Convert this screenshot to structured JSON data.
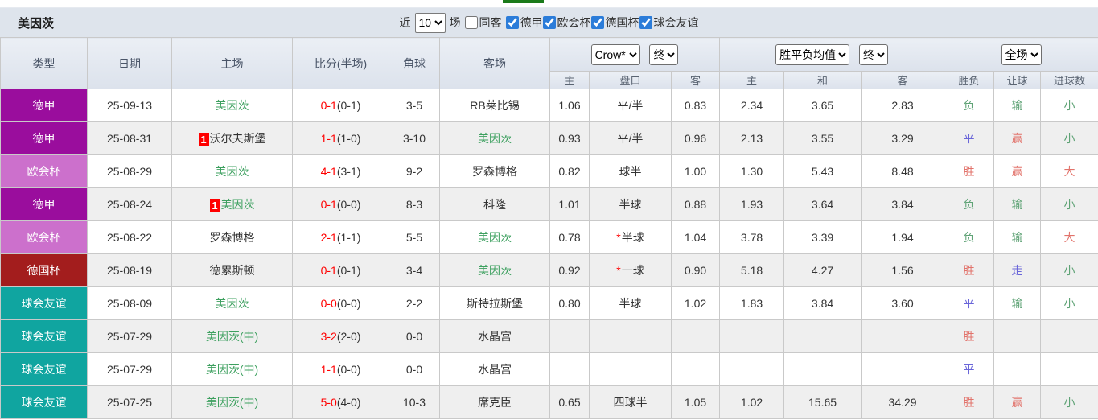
{
  "page": {
    "team_title": "美因茨"
  },
  "filter": {
    "near_label": "近",
    "matches_value": "10",
    "matches_label": "场",
    "same_away_label": "同客",
    "same_away_checked": false,
    "leagues": [
      {
        "label": "德甲",
        "checked": true
      },
      {
        "label": "欧会杯",
        "checked": true
      },
      {
        "label": "德国杯",
        "checked": true
      },
      {
        "label": "球会友谊",
        "checked": true
      }
    ]
  },
  "colors": {
    "league_bundesliga": "#9a0d9d",
    "league_uecl": "#cc70cc",
    "league_dfb_pokal": "#a31d1d",
    "league_friendly": "#10a5a0",
    "team_highlight": "#3da05f",
    "score_red": "#ff0000",
    "result_red": "#e2736b",
    "result_green": "#5fa376",
    "result_blue": "#6a66d9"
  },
  "table": {
    "headers": {
      "type": "类型",
      "date": "日期",
      "home": "主场",
      "score": "比分(半场)",
      "corner": "角球",
      "away": "客场",
      "odds_home": "主",
      "odds_handicap": "盘口",
      "odds_away": "客",
      "mean_home": "主",
      "mean_draw": "和",
      "mean_away": "客",
      "result": "胜负",
      "handicap_result": "让球",
      "goals": "进球数"
    },
    "selects": {
      "odds_source": "Crow*",
      "odds_time": "终",
      "mean_source": "胜平负均值",
      "mean_time": "终",
      "scope": "全场"
    },
    "rows": [
      {
        "type": "德甲",
        "tc": "league_bundesliga",
        "date": "25-09-13",
        "home": "美因茨",
        "homeGreen": true,
        "homeCard": "",
        "score": "0-1",
        "half": "(0-1)",
        "corner": "3-5",
        "away": "RB莱比锡",
        "awayGreen": false,
        "oh": "1.06",
        "hcStar": false,
        "hc": "平/半",
        "oa": "0.83",
        "mh": "2.34",
        "md": "3.65",
        "ma": "2.83",
        "res": "负",
        "resC": "g",
        "let": "输",
        "letC": "g",
        "goal": "小",
        "goalC": "g"
      },
      {
        "type": "德甲",
        "tc": "league_bundesliga",
        "date": "25-08-31",
        "home": "沃尔夫斯堡",
        "homeGreen": false,
        "homeCard": "1",
        "score": "1-1",
        "half": "(1-0)",
        "corner": "3-10",
        "away": "美因茨",
        "awayGreen": true,
        "oh": "0.93",
        "hcStar": false,
        "hc": "平/半",
        "oa": "0.96",
        "mh": "2.13",
        "md": "3.55",
        "ma": "3.29",
        "res": "平",
        "resC": "b",
        "let": "赢",
        "letC": "r",
        "goal": "小",
        "goalC": "g"
      },
      {
        "type": "欧会杯",
        "tc": "league_uecl",
        "date": "25-08-29",
        "home": "美因茨",
        "homeGreen": true,
        "homeCard": "",
        "score": "4-1",
        "half": "(3-1)",
        "corner": "9-2",
        "away": "罗森博格",
        "awayGreen": false,
        "oh": "0.82",
        "hcStar": false,
        "hc": "球半",
        "oa": "1.00",
        "mh": "1.30",
        "md": "5.43",
        "ma": "8.48",
        "res": "胜",
        "resC": "r",
        "let": "赢",
        "letC": "r",
        "goal": "大",
        "goalC": "r"
      },
      {
        "type": "德甲",
        "tc": "league_bundesliga",
        "date": "25-08-24",
        "home": "美因茨",
        "homeGreen": true,
        "homeCard": "1",
        "score": "0-1",
        "half": "(0-0)",
        "corner": "8-3",
        "away": "科隆",
        "awayGreen": false,
        "oh": "1.01",
        "hcStar": false,
        "hc": "半球",
        "oa": "0.88",
        "mh": "1.93",
        "md": "3.64",
        "ma": "3.84",
        "res": "负",
        "resC": "g",
        "let": "输",
        "letC": "g",
        "goal": "小",
        "goalC": "g"
      },
      {
        "type": "欧会杯",
        "tc": "league_uecl",
        "date": "25-08-22",
        "home": "罗森博格",
        "homeGreen": false,
        "homeCard": "",
        "score": "2-1",
        "half": "(1-1)",
        "corner": "5-5",
        "away": "美因茨",
        "awayGreen": true,
        "oh": "0.78",
        "hcStar": true,
        "hc": "半球",
        "oa": "1.04",
        "mh": "3.78",
        "md": "3.39",
        "ma": "1.94",
        "res": "负",
        "resC": "g",
        "let": "输",
        "letC": "g",
        "goal": "大",
        "goalC": "r"
      },
      {
        "type": "德国杯",
        "tc": "league_dfb_pokal",
        "date": "25-08-19",
        "home": "德累斯顿",
        "homeGreen": false,
        "homeCard": "",
        "score": "0-1",
        "half": "(0-1)",
        "corner": "3-4",
        "away": "美因茨",
        "awayGreen": true,
        "oh": "0.92",
        "hcStar": true,
        "hc": "一球",
        "oa": "0.90",
        "mh": "5.18",
        "md": "4.27",
        "ma": "1.56",
        "res": "胜",
        "resC": "r",
        "let": "走",
        "letC": "b",
        "goal": "小",
        "goalC": "g"
      },
      {
        "type": "球会友谊",
        "tc": "league_friendly",
        "date": "25-08-09",
        "home": "美因茨",
        "homeGreen": true,
        "homeCard": "",
        "score": "0-0",
        "half": "(0-0)",
        "corner": "2-2",
        "away": "斯特拉斯堡",
        "awayGreen": false,
        "oh": "0.80",
        "hcStar": false,
        "hc": "半球",
        "oa": "1.02",
        "mh": "1.83",
        "md": "3.84",
        "ma": "3.60",
        "res": "平",
        "resC": "b",
        "let": "输",
        "letC": "g",
        "goal": "小",
        "goalC": "g"
      },
      {
        "type": "球会友谊",
        "tc": "league_friendly",
        "date": "25-07-29",
        "home": "美因茨(中)",
        "homeGreen": true,
        "homeCard": "",
        "score": "3-2",
        "half": "(2-0)",
        "corner": "0-0",
        "away": "水晶宫",
        "awayGreen": false,
        "oh": "",
        "hcStar": false,
        "hc": "",
        "oa": "",
        "mh": "",
        "md": "",
        "ma": "",
        "res": "胜",
        "resC": "r",
        "let": "",
        "letC": "g",
        "goal": "",
        "goalC": "g"
      },
      {
        "type": "球会友谊",
        "tc": "league_friendly",
        "date": "25-07-29",
        "home": "美因茨(中)",
        "homeGreen": true,
        "homeCard": "",
        "score": "1-1",
        "half": "(0-0)",
        "corner": "0-0",
        "away": "水晶宫",
        "awayGreen": false,
        "oh": "",
        "hcStar": false,
        "hc": "",
        "oa": "",
        "mh": "",
        "md": "",
        "ma": "",
        "res": "平",
        "resC": "b",
        "let": "",
        "letC": "g",
        "goal": "",
        "goalC": "g"
      },
      {
        "type": "球会友谊",
        "tc": "league_friendly",
        "date": "25-07-25",
        "home": "美因茨(中)",
        "homeGreen": true,
        "homeCard": "",
        "score": "5-0",
        "half": "(4-0)",
        "corner": "10-3",
        "away": "席克臣",
        "awayGreen": false,
        "oh": "0.65",
        "hcStar": false,
        "hc": "四球半",
        "oa": "1.05",
        "mh": "1.02",
        "md": "15.65",
        "ma": "34.29",
        "res": "胜",
        "resC": "r",
        "let": "赢",
        "letC": "r",
        "goal": "小",
        "goalC": "g"
      }
    ]
  }
}
